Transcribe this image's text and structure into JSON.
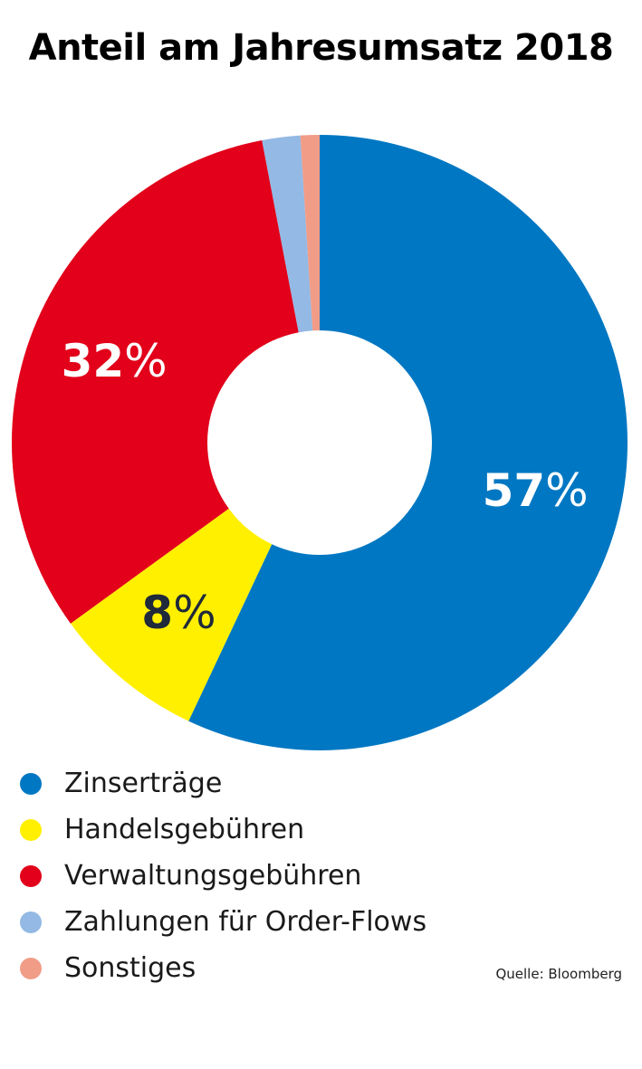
{
  "chart_data": {
    "type": "pie",
    "title": "Anteil am Jahresumsatz 2018",
    "donut": true,
    "slices": [
      {
        "label": "Zinserträge",
        "value": 57,
        "value_label": "57",
        "color": "#0077c2",
        "label_color": "#ffffff"
      },
      {
        "label": "Handelsgebühren",
        "value": 8,
        "value_label": "8",
        "color": "#fff000",
        "label_color": "#1f2a3a"
      },
      {
        "label": "Verwaltungsgebühren",
        "value": 32,
        "value_label": "32",
        "color": "#e2001a",
        "label_color": "#ffffff"
      },
      {
        "label": "Zahlungen für Order-Flows",
        "value": 2,
        "value_label": "",
        "color": "#93b9e4",
        "label_color": "#ffffff"
      },
      {
        "label": "Sonstiges",
        "value": 1,
        "value_label": "",
        "color": "#f19c87",
        "label_color": "#ffffff"
      }
    ],
    "percent_sign": "%",
    "legend_position": "bottom-left",
    "source": "Quelle: Bloomberg"
  }
}
